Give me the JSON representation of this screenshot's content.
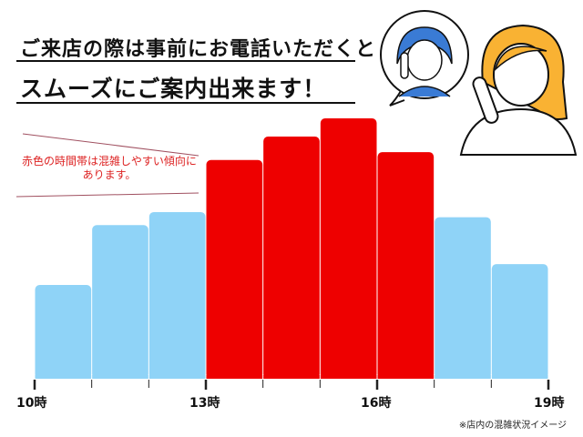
{
  "header": {
    "line1": "ご来店の際は事前にお電話いただくと",
    "line2": "スムーズにご案内出来ます！"
  },
  "note": {
    "line1": "赤色の時間帯は混雑しやすい傾向に",
    "line2": "あります。"
  },
  "footnote": "※店内の混雑状況イメージ",
  "colors": {
    "normal": "#8fd3f7",
    "busy": "#ee0000"
  },
  "chart_data": {
    "type": "bar",
    "title": "",
    "xlabel": "",
    "ylabel": "",
    "x_tick_labels": [
      "10時",
      "13時",
      "16時",
      "19時"
    ],
    "categories": [
      "10-11",
      "11-12",
      "12-13",
      "13-14",
      "14-15",
      "15-16",
      "16-17",
      "17-18",
      "18-19"
    ],
    "values": [
      36,
      59,
      64,
      84,
      93,
      100,
      87,
      62,
      44
    ],
    "busy": [
      false,
      false,
      false,
      true,
      true,
      true,
      true,
      false,
      false
    ],
    "ylim": [
      0,
      100
    ],
    "grid": false,
    "yaxis_shown": false
  }
}
